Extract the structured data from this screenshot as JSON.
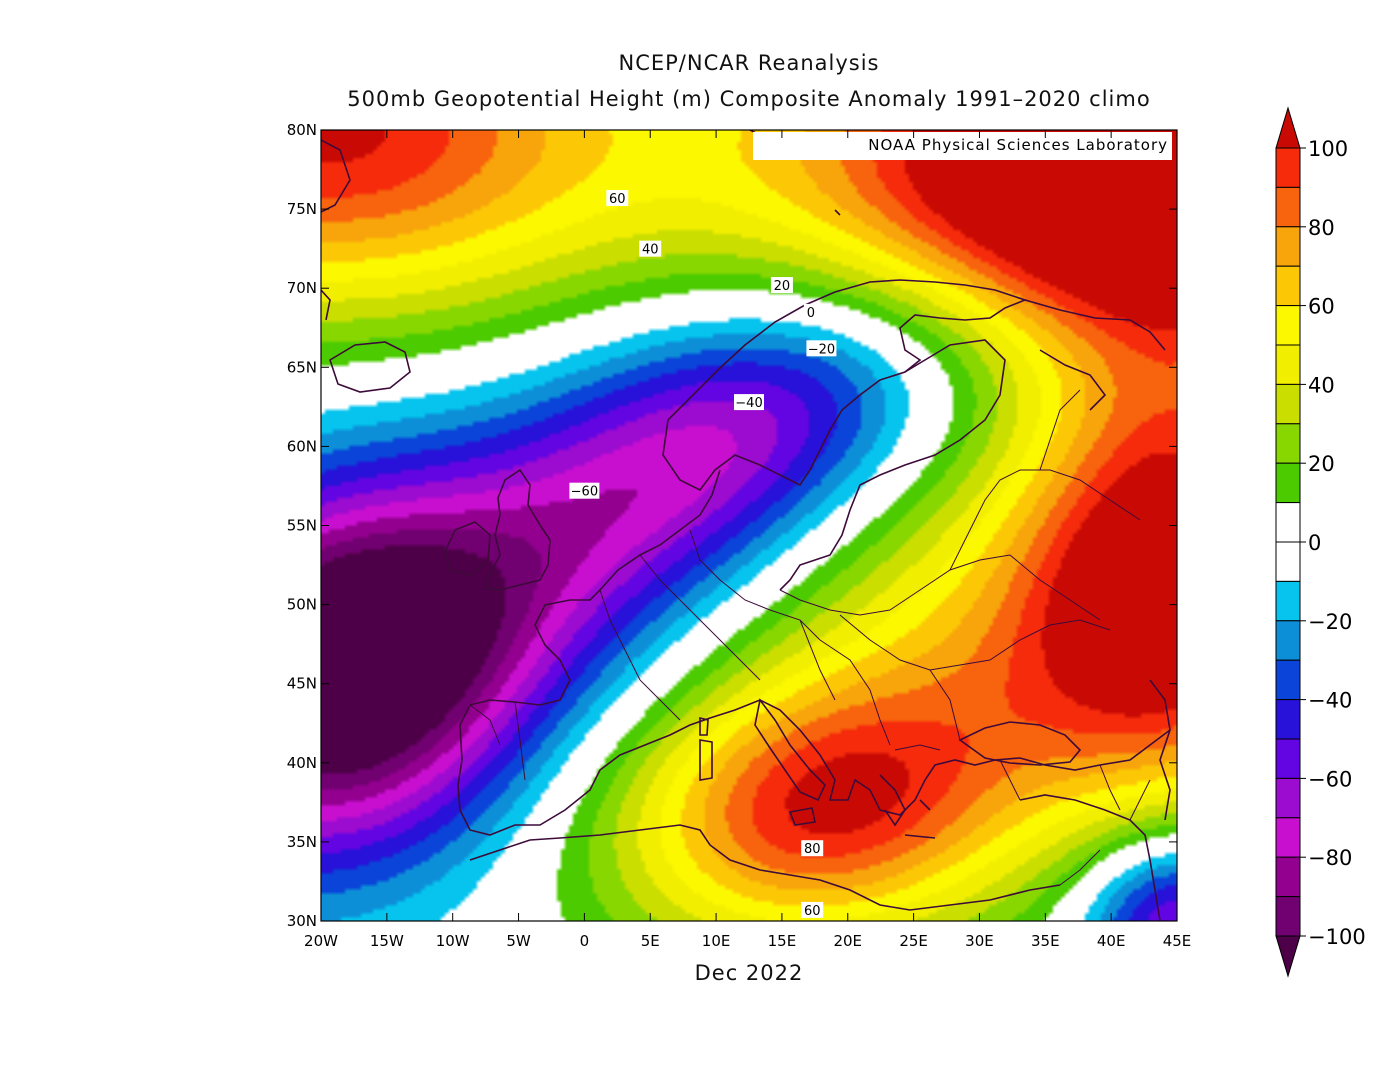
{
  "title_line1": "NCEP/NCAR Reanalysis",
  "title_line2": "500mb Geopotential Height (m) Composite Anomaly 1991–2020 climo",
  "credit": "NOAA Physical Sciences Laboratory",
  "period": "Dec 2022",
  "map": {
    "lon_range": [
      -20,
      45
    ],
    "lat_range": [
      30,
      80
    ],
    "lon_ticks": [
      "20W",
      "15W",
      "10W",
      "5W",
      "0",
      "5E",
      "10E",
      "15E",
      "20E",
      "25E",
      "30E",
      "35E",
      "40E",
      "45E"
    ],
    "lat_ticks": [
      "30N",
      "35N",
      "40N",
      "45N",
      "50N",
      "55N",
      "60N",
      "65N",
      "70N",
      "75N",
      "80N"
    ]
  },
  "contour_labels": [
    {
      "text": "60",
      "lon": 2.5,
      "lat": 75.7
    },
    {
      "text": "40",
      "lon": 5,
      "lat": 72.5
    },
    {
      "text": "20",
      "lon": 15,
      "lat": 70.2
    },
    {
      "text": "0",
      "lon": 17.2,
      "lat": 68.5
    },
    {
      "text": "−20",
      "lon": 18,
      "lat": 66.2
    },
    {
      "text": "−40",
      "lon": 12.5,
      "lat": 62.8
    },
    {
      "text": "−60",
      "lon": 0,
      "lat": 57.2
    },
    {
      "text": "80",
      "lon": 17.3,
      "lat": 34.6
    },
    {
      "text": "60",
      "lon": 17.3,
      "lat": 30.7
    }
  ],
  "colorbar": {
    "labels": [
      "100",
      "80",
      "60",
      "40",
      "20",
      "0",
      "−20",
      "−40",
      "−60",
      "−80",
      "−100"
    ],
    "colors": [
      "#f52b0c",
      "#f8630d",
      "#f8a40b",
      "#fcc805",
      "#fcf800",
      "#f2ee00",
      "#cade00",
      "#89d700",
      "#4ccc00",
      "#ffffff",
      "#ffffff",
      "#06c4ee",
      "#0d8fd8",
      "#0a44d8",
      "#2811d8",
      "#6305e2",
      "#9c0bd0",
      "#c80fd0",
      "#93008f",
      "#710070"
    ],
    "top_arrow": "#c90a04",
    "bottom_arrow": "#4d0048"
  },
  "field_levels": [
    {
      "v": -100,
      "color": "#4d0048"
    },
    {
      "v": -90,
      "color": "#710070"
    },
    {
      "v": -80,
      "color": "#93008f"
    },
    {
      "v": -70,
      "color": "#c80fd0"
    },
    {
      "v": -60,
      "color": "#9c0bd0"
    },
    {
      "v": -50,
      "color": "#6305e2"
    },
    {
      "v": -40,
      "color": "#2811d8"
    },
    {
      "v": -30,
      "color": "#0a44d8"
    },
    {
      "v": -20,
      "color": "#0d8fd8"
    },
    {
      "v": -10,
      "color": "#06c4ee"
    },
    {
      "v": 10,
      "color": "#ffffff"
    },
    {
      "v": 20,
      "color": "#4ccc00"
    },
    {
      "v": 30,
      "color": "#89d700"
    },
    {
      "v": 40,
      "color": "#cade00"
    },
    {
      "v": 50,
      "color": "#f2ee00"
    },
    {
      "v": 60,
      "color": "#fcf800"
    },
    {
      "v": 70,
      "color": "#fcc805"
    },
    {
      "v": 80,
      "color": "#f8a40b"
    },
    {
      "v": 90,
      "color": "#f8630d"
    },
    {
      "v": 100,
      "color": "#f52b0c"
    },
    {
      "v": 999,
      "color": "#c90a04"
    }
  ]
}
